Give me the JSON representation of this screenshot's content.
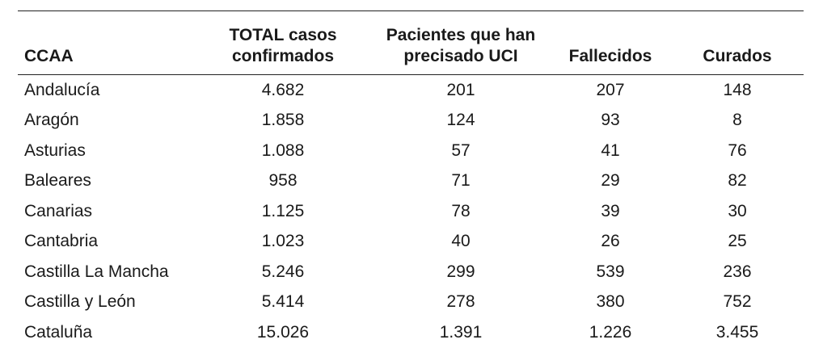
{
  "table": {
    "headers": [
      "CCAA",
      "TOTAL casos confirmados",
      "Pacientes que han precisado UCI",
      "Fallecidos",
      "Curados"
    ],
    "header_lines": [
      [
        "CCAA"
      ],
      [
        "TOTAL casos",
        "confirmados"
      ],
      [
        "Pacientes que han",
        "precisado UCI"
      ],
      [
        "Fallecidos"
      ],
      [
        "Curados"
      ]
    ],
    "rows": [
      [
        "Andalucía",
        "4.682",
        "201",
        "207",
        "148"
      ],
      [
        "Aragón",
        "1.858",
        "124",
        "93",
        "8"
      ],
      [
        "Asturias",
        "1.088",
        "57",
        "41",
        "76"
      ],
      [
        "Baleares",
        "958",
        "71",
        "29",
        "82"
      ],
      [
        "Canarias",
        "1.125",
        "78",
        "39",
        "30"
      ],
      [
        "Cantabria",
        "1.023",
        "40",
        "26",
        "25"
      ],
      [
        "Castilla La Mancha",
        "5.246",
        "299",
        "539",
        "236"
      ],
      [
        "Castilla y León",
        "5.414",
        "278",
        "380",
        "752"
      ],
      [
        "Cataluña",
        "15.026",
        "1.391",
        "1.226",
        "3.455"
      ]
    ]
  }
}
